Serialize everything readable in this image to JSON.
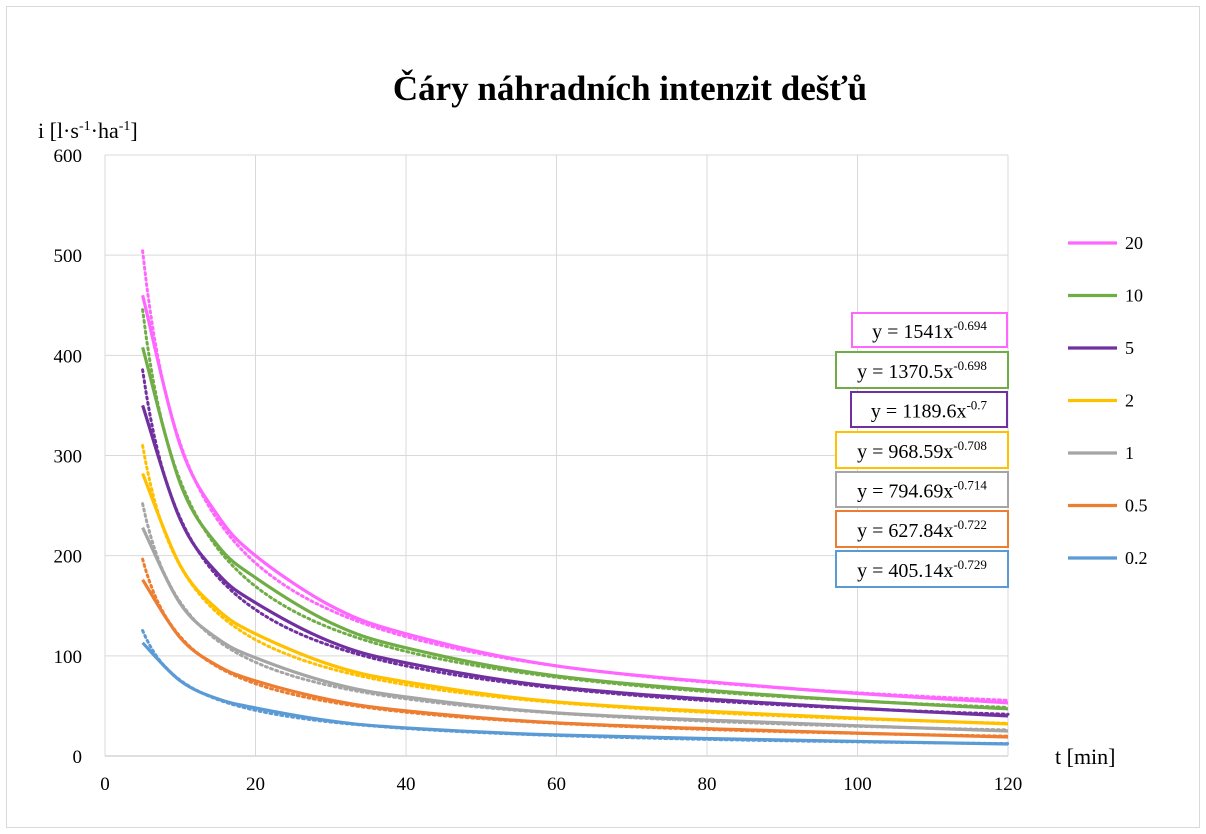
{
  "chart_data": {
    "type": "line",
    "title": "Čáry náhradních intenzit dešťů",
    "ylabel": {
      "base": "i [l·s",
      "sup1": "-1",
      "mid": "·ha",
      "sup2": "-1",
      "end": "]"
    },
    "xlabel": "t [min]",
    "xlim": [
      0,
      120
    ],
    "ylim": [
      0,
      600
    ],
    "xticks": [
      0,
      20,
      40,
      60,
      80,
      100,
      120
    ],
    "yticks": [
      0,
      100,
      200,
      300,
      400,
      500,
      600
    ],
    "grid": true,
    "legend_position": "right",
    "x": [
      5,
      10,
      15,
      20,
      30,
      40,
      60,
      90,
      120
    ],
    "series": [
      {
        "name": "20",
        "color": "#ff66ff",
        "values": [
          460,
          310,
          240,
          200,
          150,
          122,
          90,
          68,
          53
        ],
        "trendline": {
          "coef": 1541,
          "exp": -0.694,
          "label": "y = 1541x",
          "label_exp": "-0.694"
        }
      },
      {
        "name": "10",
        "color": "#70ad47",
        "values": [
          408,
          272,
          210,
          178,
          133,
          108,
          80,
          60,
          47
        ],
        "trendline": {
          "coef": 1370.5,
          "exp": -0.698,
          "label": "y = 1370.5x",
          "label_exp": "-0.698"
        }
      },
      {
        "name": "5",
        "color": "#7030a0",
        "values": [
          350,
          236,
          182,
          153,
          114,
          93,
          69,
          52,
          40
        ],
        "trendline": {
          "coef": 1189.6,
          "exp": -0.7,
          "label": "y = 1189.6x",
          "label_exp": "-0.7"
        }
      },
      {
        "name": "2",
        "color": "#ffc000",
        "values": [
          282,
          190,
          146,
          122,
          91,
          74,
          54,
          41,
          32
        ],
        "trendline": {
          "coef": 968.59,
          "exp": -0.708,
          "label": "y = 968.59x",
          "label_exp": "-0.708"
        }
      },
      {
        "name": "1",
        "color": "#a5a5a5",
        "values": [
          228,
          152,
          117,
          98,
          73,
          59,
          43,
          33,
          25
        ],
        "trendline": {
          "coef": 794.69,
          "exp": -0.714,
          "label": "y = 794.69x",
          "label_exp": "-0.714"
        }
      },
      {
        "name": "0.5",
        "color": "#ed7d31",
        "values": [
          176,
          118,
          90,
          75,
          56,
          45,
          33,
          25,
          19
        ],
        "trendline": {
          "coef": 627.84,
          "exp": -0.722,
          "label": "y = 627.84x",
          "label_exp": "-0.722"
        }
      },
      {
        "name": "0.2",
        "color": "#5b9bd5",
        "values": [
          113,
          75,
          57,
          48,
          35,
          28,
          21,
          16,
          12
        ],
        "trendline": {
          "coef": 405.14,
          "exp": -0.729,
          "label": "y = 405.14x",
          "label_exp": "-0.729"
        }
      }
    ]
  }
}
